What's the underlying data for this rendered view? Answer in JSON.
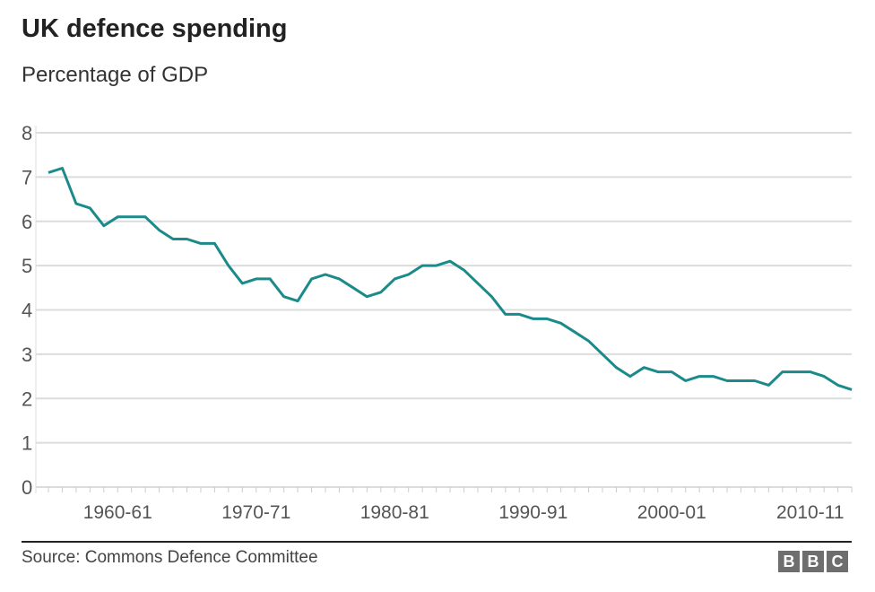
{
  "chart_data": {
    "type": "line",
    "title": "UK defence spending",
    "subtitle": "Percentage of GDP",
    "xlabel": "",
    "ylabel": "",
    "ylim": [
      0,
      8
    ],
    "yticks": [
      "0",
      "1",
      "2",
      "3",
      "4",
      "5",
      "6",
      "7",
      "8"
    ],
    "xticks": [
      "1960-61",
      "1970-71",
      "1980-81",
      "1990-91",
      "2000-01",
      "2010-11"
    ],
    "grid": true,
    "line_color": "#1a8a8a",
    "x_start": "1955-56",
    "x_end": "2013-14",
    "values": [
      7.1,
      7.2,
      6.4,
      6.3,
      5.9,
      6.1,
      6.1,
      6.1,
      5.8,
      5.6,
      5.6,
      5.5,
      5.5,
      5.0,
      4.6,
      4.7,
      4.7,
      4.3,
      4.2,
      4.7,
      4.8,
      4.7,
      4.5,
      4.3,
      4.4,
      4.7,
      4.8,
      5.0,
      5.0,
      5.1,
      4.9,
      4.6,
      4.3,
      3.9,
      3.9,
      3.8,
      3.8,
      3.7,
      3.5,
      3.3,
      3.0,
      2.7,
      2.5,
      2.7,
      2.6,
      2.6,
      2.4,
      2.5,
      2.5,
      2.4,
      2.4,
      2.4,
      2.3,
      2.6,
      2.6,
      2.6,
      2.5,
      2.3,
      2.2
    ]
  },
  "footer": {
    "source": "Source: Commons Defence Committee",
    "logo": [
      "B",
      "B",
      "C"
    ]
  }
}
